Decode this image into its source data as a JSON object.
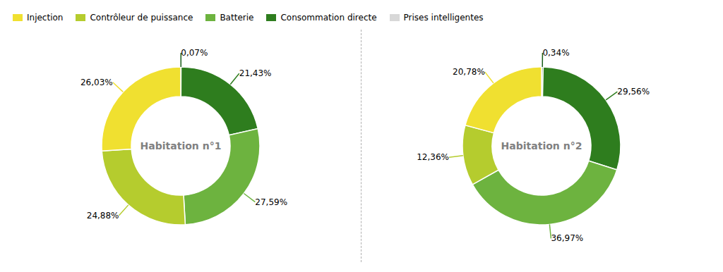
{
  "chart_data": [
    {
      "type": "pie",
      "title": "Habitation n°1",
      "values": [
        0.07,
        21.43,
        27.59,
        24.88,
        26.03
      ],
      "value_labels": [
        "0,07%",
        "21,43%",
        "27,59%",
        "24,88%",
        "26,03%"
      ],
      "colors": [
        "#1a5e1a",
        "#2e7d1e",
        "#6db33f",
        "#b5cc2e",
        "#f0e030"
      ],
      "data_labels": true
    },
    {
      "type": "pie",
      "title": "Habitation n°2",
      "values": [
        0.34,
        29.56,
        36.97,
        12.36,
        20.78
      ],
      "value_labels": [
        "0,34%",
        "29,56%",
        "36,97%",
        "12,36%",
        "20,78%"
      ],
      "colors": [
        "#1a5e1a",
        "#2e7d1e",
        "#6db33f",
        "#b5cc2e",
        "#f0e030"
      ],
      "data_labels": true
    }
  ],
  "legend": "upper left",
  "legend_entries": [
    {
      "name": "Injection",
      "color": "#f0e030"
    },
    {
      "name": "Contrôleur de puissance",
      "color": "#b5cc2e"
    },
    {
      "name": "Batterie",
      "color": "#6db33f"
    },
    {
      "name": "Consommation directe",
      "color": "#2e7d1e"
    },
    {
      "name": "Prises intelligentes",
      "color": "#d8d8d8"
    }
  ],
  "divider_color": "#b0b0b0"
}
